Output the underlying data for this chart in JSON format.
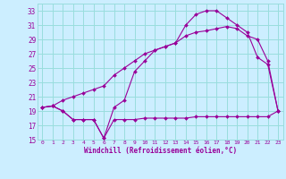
{
  "xlabel": "Windchill (Refroidissement éolien,°C)",
  "bg_color": "#cceeff",
  "grid_color": "#99dddd",
  "line_color": "#990099",
  "xlim": [
    -0.5,
    23.5
  ],
  "ylim": [
    15,
    34
  ],
  "xticks": [
    0,
    1,
    2,
    3,
    4,
    5,
    6,
    7,
    8,
    9,
    10,
    11,
    12,
    13,
    14,
    15,
    16,
    17,
    18,
    19,
    20,
    21,
    22,
    23
  ],
  "yticks": [
    15,
    17,
    19,
    21,
    23,
    25,
    27,
    29,
    31,
    33
  ],
  "series1_x": [
    0,
    1,
    2,
    3,
    4,
    5,
    6,
    7,
    8,
    9,
    10,
    11,
    12,
    13,
    14,
    15,
    16,
    17,
    18,
    19,
    20,
    21,
    22,
    23
  ],
  "series1_y": [
    19.5,
    19.7,
    19.0,
    17.8,
    17.8,
    17.8,
    15.2,
    17.8,
    17.8,
    17.8,
    18.0,
    18.0,
    18.0,
    18.0,
    18.0,
    18.2,
    18.2,
    18.2,
    18.2,
    18.2,
    18.2,
    18.2,
    18.2,
    19.0
  ],
  "series2_x": [
    0,
    1,
    2,
    3,
    4,
    5,
    6,
    7,
    8,
    9,
    10,
    11,
    12,
    13,
    14,
    15,
    16,
    17,
    18,
    19,
    20,
    21,
    22,
    23
  ],
  "series2_y": [
    19.5,
    19.7,
    19.0,
    17.8,
    17.8,
    17.8,
    15.2,
    19.5,
    20.5,
    24.5,
    26.0,
    27.5,
    28.0,
    28.5,
    31.0,
    32.5,
    33.0,
    33.0,
    32.0,
    31.0,
    30.0,
    26.5,
    25.5,
    19.0
  ],
  "series3_x": [
    0,
    1,
    2,
    3,
    4,
    5,
    6,
    7,
    8,
    9,
    10,
    11,
    12,
    13,
    14,
    15,
    16,
    17,
    18,
    19,
    20,
    21,
    22,
    23
  ],
  "series3_y": [
    19.5,
    19.7,
    20.5,
    21.0,
    21.5,
    22.0,
    22.5,
    24.0,
    25.0,
    26.0,
    27.0,
    27.5,
    28.0,
    28.5,
    29.5,
    30.0,
    30.2,
    30.5,
    30.8,
    30.5,
    29.5,
    29.0,
    26.0,
    19.0
  ]
}
